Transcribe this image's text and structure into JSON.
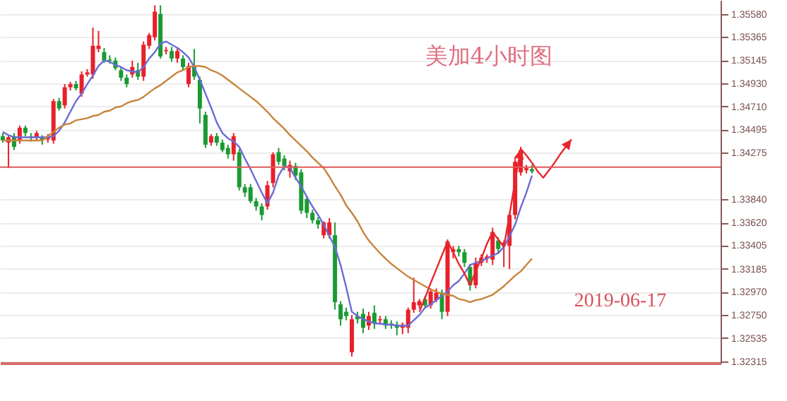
{
  "chart_data": {
    "type": "candlestick",
    "title": "美加4小时图",
    "annotations": [
      "2019-06-17"
    ],
    "categories": [
      null,
      null,
      null,
      null,
      null,
      null,
      null,
      null,
      null,
      null,
      null,
      null,
      null,
      null,
      null,
      null,
      null,
      null,
      null,
      null,
      null,
      null,
      null,
      null,
      null,
      null,
      null,
      null,
      null,
      null,
      null,
      null,
      null,
      null,
      null,
      null,
      null,
      null,
      null,
      null,
      null,
      null,
      null,
      null,
      null,
      null,
      null,
      null,
      null,
      null,
      null,
      null,
      null,
      null,
      null,
      null,
      null,
      null,
      null,
      null,
      null,
      null,
      null,
      null,
      null,
      null,
      null,
      null,
      null,
      null,
      null,
      null,
      null,
      null,
      null,
      null,
      null,
      null,
      null,
      null,
      null,
      null,
      null,
      null,
      null,
      null,
      null,
      null,
      null,
      null,
      null,
      null,
      null,
      null,
      null,
      null,
      null,
      null,
      null,
      null,
      null,
      null,
      null,
      null,
      null,
      null,
      null,
      null,
      null,
      null,
      null,
      null,
      null,
      null,
      null,
      null,
      null,
      null,
      null,
      null,
      null,
      null,
      null,
      null,
      null,
      null,
      null,
      null
    ],
    "ohlc": [
      [
        1.3443,
        1.3446,
        1.3437,
        1.3439
      ],
      [
        1.3437,
        1.3444,
        1.3413,
        1.3442
      ],
      [
        1.3443,
        1.3446,
        1.343,
        1.3433
      ],
      [
        1.3439,
        1.3453,
        1.3436,
        1.3451
      ],
      [
        1.3451,
        1.3453,
        1.3443,
        1.3446
      ],
      [
        1.3443,
        1.3446,
        1.3438,
        1.3442
      ],
      [
        1.3442,
        1.3448,
        1.3439,
        1.3446
      ],
      [
        1.3442,
        1.3444,
        1.3435,
        1.3439
      ],
      [
        1.344,
        1.3445,
        1.3437,
        1.3443
      ],
      [
        1.3439,
        1.3478,
        1.3436,
        1.3476
      ],
      [
        1.3476,
        1.3479,
        1.3467,
        1.3469
      ],
      [
        1.3472,
        1.3492,
        1.3469,
        1.3489
      ],
      [
        1.3489,
        1.3494,
        1.3486,
        1.3492
      ],
      [
        1.3492,
        1.3495,
        1.3486,
        1.3488
      ],
      [
        1.3483,
        1.3504,
        1.348,
        1.3501
      ],
      [
        1.3501,
        1.3506,
        1.3499,
        1.3503
      ],
      [
        1.3501,
        1.3545,
        1.3497,
        1.3528
      ],
      [
        1.3525,
        1.3542,
        1.3522,
        1.3528
      ],
      [
        1.3522,
        1.3526,
        1.3512,
        1.3514
      ],
      [
        1.3515,
        1.3519,
        1.3511,
        1.3514
      ],
      [
        1.3514,
        1.3517,
        1.3505,
        1.3507
      ],
      [
        1.3505,
        1.3508,
        1.3495,
        1.3498
      ],
      [
        1.3498,
        1.3501,
        1.3489,
        1.3492
      ],
      [
        1.3501,
        1.3514,
        1.3498,
        1.3508
      ],
      [
        1.3505,
        1.3512,
        1.3496,
        1.3499
      ],
      [
        1.3499,
        1.3532,
        1.3495,
        1.3529
      ],
      [
        1.3528,
        1.354,
        1.3525,
        1.3538
      ],
      [
        1.3536,
        1.3566,
        1.3533,
        1.356
      ],
      [
        1.3558,
        1.3566,
        1.3516,
        1.3518
      ],
      [
        1.3523,
        1.3527,
        1.352,
        1.3524
      ],
      [
        1.3523,
        1.3527,
        1.3513,
        1.3516
      ],
      [
        1.3516,
        1.3526,
        1.3512,
        1.3523
      ],
      [
        1.3516,
        1.3519,
        1.3505,
        1.3508
      ],
      [
        1.3492,
        1.3512,
        1.3489,
        1.3509
      ],
      [
        1.3508,
        1.3525,
        1.3496,
        1.3499
      ],
      [
        1.3496,
        1.3499,
        1.3455,
        1.3469
      ],
      [
        1.3463,
        1.3466,
        1.3432,
        1.3435
      ],
      [
        1.3437,
        1.3445,
        1.3434,
        1.3443
      ],
      [
        1.3443,
        1.3446,
        1.3434,
        1.3437
      ],
      [
        1.3437,
        1.344,
        1.3428,
        1.343
      ],
      [
        1.3432,
        1.3435,
        1.3422,
        1.3426
      ],
      [
        1.3426,
        1.3446,
        1.342,
        1.3443
      ],
      [
        1.3428,
        1.3431,
        1.3392,
        1.3395
      ],
      [
        1.3395,
        1.3398,
        1.3386,
        1.339
      ],
      [
        1.3395,
        1.3398,
        1.338,
        1.3382
      ],
      [
        1.3382,
        1.3385,
        1.3373,
        1.3377
      ],
      [
        1.3377,
        1.338,
        1.3364,
        1.3369
      ],
      [
        1.3377,
        1.3401,
        1.3374,
        1.3397
      ],
      [
        1.3399,
        1.3428,
        1.3395,
        1.3426
      ],
      [
        1.3428,
        1.3432,
        1.3416,
        1.3419
      ],
      [
        1.3422,
        1.3425,
        1.3411,
        1.3415
      ],
      [
        1.341,
        1.342,
        1.3404,
        1.3416
      ],
      [
        1.3415,
        1.3418,
        1.3402,
        1.3406
      ],
      [
        1.3409,
        1.3412,
        1.337,
        1.3373
      ],
      [
        1.3384,
        1.3387,
        1.3366,
        1.3371
      ],
      [
        1.3371,
        1.3374,
        1.3361,
        1.3364
      ],
      [
        1.3364,
        1.3367,
        1.3356,
        1.336
      ],
      [
        1.335,
        1.3363,
        1.3347,
        1.3362
      ],
      [
        1.335,
        1.3366,
        1.3347,
        1.3362
      ],
      [
        1.335,
        1.3362,
        1.328,
        1.3287
      ],
      [
        1.3285,
        1.3288,
        1.3265,
        1.3271
      ],
      [
        1.3278,
        1.3282,
        1.327,
        1.3274
      ],
      [
        1.324,
        1.3275,
        1.3236,
        1.3271
      ],
      [
        1.3274,
        1.3278,
        1.3267,
        1.3271
      ],
      [
        1.3276,
        1.3281,
        1.3258,
        1.3263
      ],
      [
        1.3265,
        1.3278,
        1.3261,
        1.3274
      ],
      [
        1.3277,
        1.3284,
        1.3262,
        1.3267
      ],
      [
        1.327,
        1.3274,
        1.3266,
        1.3271
      ],
      [
        1.3271,
        1.3274,
        1.3262,
        1.3265
      ],
      [
        1.3267,
        1.327,
        1.3262,
        1.3265
      ],
      [
        1.3266,
        1.3269,
        1.3256,
        1.3263
      ],
      [
        1.3263,
        1.3268,
        1.3257,
        1.3266
      ],
      [
        1.3263,
        1.3282,
        1.3258,
        1.328
      ],
      [
        1.328,
        1.331,
        1.3277,
        1.3287
      ],
      [
        1.3284,
        1.329,
        1.3281,
        1.3288
      ],
      [
        1.329,
        1.3293,
        1.3281,
        1.3284
      ],
      [
        1.3284,
        1.33,
        1.3281,
        1.3297
      ],
      [
        1.3289,
        1.33,
        1.3287,
        1.3296
      ],
      [
        1.3296,
        1.3299,
        1.3271,
        1.3278
      ],
      [
        1.3278,
        1.3346,
        1.3274,
        1.3344
      ],
      [
        1.3334,
        1.334,
        1.3328,
        1.3337
      ],
      [
        1.3337,
        1.334,
        1.333,
        1.3334
      ],
      [
        1.3334,
        1.3337,
        1.332,
        1.3324
      ],
      [
        1.332,
        1.3323,
        1.3298,
        1.3303
      ],
      [
        1.3303,
        1.3329,
        1.33,
        1.3324
      ],
      [
        1.3324,
        1.3332,
        1.3321,
        1.3329
      ],
      [
        1.3328,
        1.3332,
        1.3324,
        1.333
      ],
      [
        1.3327,
        1.3357,
        1.3322,
        1.3353
      ],
      [
        1.3345,
        1.3348,
        1.3333,
        1.3337
      ],
      [
        1.334,
        1.3345,
        1.332,
        1.3343
      ],
      [
        1.334,
        1.3371,
        1.3318,
        1.3369
      ],
      [
        1.3369,
        1.3423,
        1.3365,
        1.3419
      ],
      [
        1.3409,
        1.3433,
        1.3406,
        1.343
      ],
      [
        1.3411,
        1.3416,
        1.3408,
        1.3413
      ],
      [
        1.3412,
        1.3416,
        1.3408,
        1.341
      ],
      null,
      null,
      null,
      null,
      null,
      null,
      null,
      null,
      null,
      null,
      null,
      null,
      null,
      null,
      null,
      null,
      null,
      null,
      null,
      null,
      null,
      null,
      null,
      null,
      null,
      null,
      null,
      null,
      null,
      null,
      null,
      null,
      null
    ],
    "series": [
      {
        "type": "line",
        "color": "#6b6bd6",
        "values": [
          1.3447,
          1.3444,
          1.3442,
          1.3442,
          1.3442,
          1.3442,
          1.3442,
          1.3442,
          1.3442,
          1.3443,
          1.3448,
          1.3456,
          1.3466,
          1.3476,
          1.3483,
          1.3492,
          1.35,
          1.3509,
          1.3514,
          1.3513,
          1.351,
          1.3508,
          1.3505,
          1.3504,
          1.3503,
          1.3508,
          1.3516,
          1.3522,
          1.353,
          1.3532,
          1.3529,
          1.3526,
          1.3522,
          1.3517,
          1.3508,
          1.3496,
          1.3483,
          1.347,
          1.3456,
          1.3446,
          1.3441,
          1.3438,
          1.3433,
          1.3422,
          1.3412,
          1.3401,
          1.339,
          1.338,
          1.339,
          1.3406,
          1.3415,
          1.3413,
          1.3404,
          1.3396,
          1.3386,
          1.3377,
          1.3369,
          1.336,
          1.3349,
          1.3339,
          1.3322,
          1.3301,
          1.3278,
          1.3274,
          1.3271,
          1.3269,
          1.3267,
          1.3267,
          1.3266,
          1.3266,
          1.3265,
          1.3265,
          1.3265,
          1.327,
          1.3275,
          1.3282,
          1.3285,
          1.3289,
          1.3293,
          1.3297,
          1.3303,
          1.3307,
          1.3314,
          1.3322,
          1.3324,
          1.3326,
          1.3328,
          1.3331,
          1.3333,
          1.3339,
          1.3349,
          1.336,
          1.3376,
          1.339,
          1.3406,
          null,
          null,
          null,
          null,
          null,
          null,
          null,
          null,
          null,
          null,
          null,
          null,
          null,
          null,
          null,
          null,
          null,
          null,
          null,
          null,
          null,
          null,
          null,
          null,
          null,
          null,
          null,
          null,
          null,
          null,
          null,
          null,
          null
        ]
      },
      {
        "type": "line",
        "color": "#c8843c",
        "values": [
          1.3439,
          1.3439,
          1.3439,
          1.3439,
          1.3439,
          1.3439,
          1.3439,
          1.3439,
          1.3443,
          1.3447,
          1.3451,
          1.3454,
          1.3455,
          1.3458,
          1.3459,
          1.346,
          1.3462,
          1.3463,
          1.3466,
          1.3467,
          1.347,
          1.3471,
          1.3474,
          1.3476,
          1.3477,
          1.348,
          1.3484,
          1.3488,
          1.3491,
          1.3495,
          1.3499,
          1.3503,
          1.3505,
          1.3508,
          1.3509,
          1.3509,
          1.3508,
          1.3505,
          1.3503,
          1.35,
          1.3496,
          1.3492,
          1.3488,
          1.3484,
          1.348,
          1.3476,
          1.3471,
          1.3466,
          1.346,
          1.3455,
          1.345,
          1.3444,
          1.3439,
          1.3434,
          1.3429,
          1.3423,
          1.3418,
          1.3413,
          1.3405,
          1.3396,
          1.3388,
          1.3378,
          1.3371,
          1.3363,
          1.3353,
          1.3345,
          1.3339,
          1.3333,
          1.3328,
          1.3323,
          1.3319,
          1.3315,
          1.3311,
          1.3308,
          1.3305,
          1.3302,
          1.3299,
          1.3297,
          1.3295,
          1.3294,
          1.3293,
          1.329,
          1.3289,
          1.3287,
          1.3289,
          1.329,
          1.3292,
          1.3294,
          1.3298,
          1.3302,
          1.3307,
          1.3312,
          1.3316,
          1.3322,
          1.3328,
          null,
          null,
          null,
          null,
          null,
          null,
          null,
          null,
          null,
          null,
          null,
          null,
          null,
          null,
          null,
          null,
          null,
          null,
          null,
          null,
          null,
          null,
          null,
          null,
          null,
          null,
          null,
          null,
          null,
          null,
          null,
          null,
          null
        ]
      },
      {
        "type": "line",
        "color": "#e8262e",
        "values": [
          null,
          null,
          null,
          null,
          null,
          null,
          null,
          null,
          null,
          null,
          null,
          null,
          null,
          null,
          null,
          null,
          null,
          null,
          null,
          null,
          null,
          null,
          null,
          null,
          null,
          null,
          null,
          null,
          null,
          null,
          null,
          null,
          null,
          null,
          null,
          null,
          null,
          null,
          null,
          null,
          null,
          null,
          null,
          null,
          null,
          null,
          null,
          null,
          null,
          null,
          null,
          null,
          null,
          null,
          null,
          null,
          null,
          null,
          null,
          null,
          null,
          null,
          null,
          null,
          null,
          null,
          null,
          null,
          null,
          null,
          null,
          null,
          null,
          null,
          1.3278,
          1.3291,
          1.3305,
          1.3318,
          1.3331,
          1.3344,
          1.3334,
          1.3323,
          1.3314,
          1.3303,
          1.3316,
          1.3328,
          1.3342,
          1.3353,
          1.3346,
          1.3339,
          1.3369,
          1.3401,
          1.3431,
          1.3425,
          1.3418,
          1.341,
          1.3404,
          1.3411,
          1.3418,
          1.3426,
          1.3433,
          1.344,
          null,
          null,
          null,
          null,
          null,
          null,
          null,
          null,
          null,
          null,
          null,
          null,
          null,
          null,
          null,
          null,
          null,
          null,
          null,
          null,
          null,
          null,
          null,
          null,
          null,
          null
        ]
      }
    ],
    "ylim": [
      1.323,
      1.3571
    ],
    "yticks": [
      {
        "value": 1.3558,
        "label": "1.35580"
      },
      1.35365,
      1.35145,
      {
        "value": 1.3493,
        "label": "1.34930"
      },
      {
        "value": 1.3471,
        "label": "1.34710"
      },
      1.34495,
      1.34275,
      {
        "value": 1.3384,
        "label": "1.33840"
      },
      {
        "value": 1.3362,
        "label": "1.33620"
      },
      1.33405,
      1.33185,
      {
        "value": 1.3297,
        "label": "1.32970"
      },
      {
        "value": 1.3275,
        "label": "1.32750"
      },
      1.32535,
      1.32315
    ],
    "grid": "y",
    "tick_labels": "y",
    "ref_lines": [
      {
        "axis": "y",
        "value": 1.3414,
        "color": "#e05a5a"
      }
    ]
  }
}
